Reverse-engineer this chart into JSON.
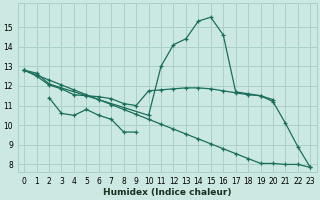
{
  "xlabel": "Humidex (Indice chaleur)",
  "bg_color": "#cce8e2",
  "grid_color": "#aad0c8",
  "line_color": "#1a6e5c",
  "series": [
    {
      "x": [
        0,
        1,
        2,
        10,
        11,
        12,
        13,
        14,
        15,
        16,
        17,
        18,
        19,
        20,
        21,
        22,
        23
      ],
      "y": [
        12.8,
        12.65,
        12.1,
        10.5,
        13.0,
        14.1,
        14.4,
        15.3,
        15.5,
        14.6,
        11.7,
        11.6,
        11.5,
        11.2,
        10.1,
        8.9,
        7.85
      ]
    },
    {
      "x": [
        2,
        3,
        4,
        5,
        6,
        7,
        8,
        9
      ],
      "y": [
        11.4,
        10.6,
        10.5,
        10.8,
        10.5,
        10.3,
        9.65,
        9.65
      ]
    },
    {
      "x": [
        0,
        1,
        2,
        3,
        4,
        5,
        6,
        7,
        8,
        9,
        10,
        11,
        12,
        13,
        14,
        15,
        16,
        17,
        18,
        19,
        20
      ],
      "y": [
        12.8,
        12.5,
        12.05,
        11.85,
        11.55,
        11.5,
        11.45,
        11.35,
        11.1,
        11.0,
        11.75,
        11.8,
        11.85,
        11.9,
        11.9,
        11.85,
        11.75,
        11.65,
        11.55,
        11.5,
        11.3
      ]
    },
    {
      "x": [
        0,
        1,
        2,
        3,
        4,
        5,
        6,
        7,
        8,
        9,
        10,
        11,
        12,
        13,
        14,
        15,
        16,
        17,
        18,
        19,
        20,
        21,
        22,
        23
      ],
      "y": [
        12.8,
        12.55,
        12.3,
        12.05,
        11.8,
        11.55,
        11.3,
        11.05,
        10.8,
        10.55,
        10.3,
        10.05,
        9.8,
        9.55,
        9.3,
        9.05,
        8.8,
        8.55,
        8.3,
        8.05,
        8.05,
        8.0,
        8.0,
        7.85
      ]
    }
  ],
  "xlim": [
    -0.5,
    23.5
  ],
  "ylim": [
    7.6,
    16.2
  ],
  "yticks": [
    8,
    9,
    10,
    11,
    12,
    13,
    14,
    15
  ],
  "xticks": [
    0,
    1,
    2,
    3,
    4,
    5,
    6,
    7,
    8,
    9,
    10,
    11,
    12,
    13,
    14,
    15,
    16,
    17,
    18,
    19,
    20,
    21,
    22,
    23
  ],
  "marker": "+",
  "markersize": 3.5,
  "linewidth": 0.9,
  "tick_fontsize": 5.5,
  "xlabel_fontsize": 6.5
}
